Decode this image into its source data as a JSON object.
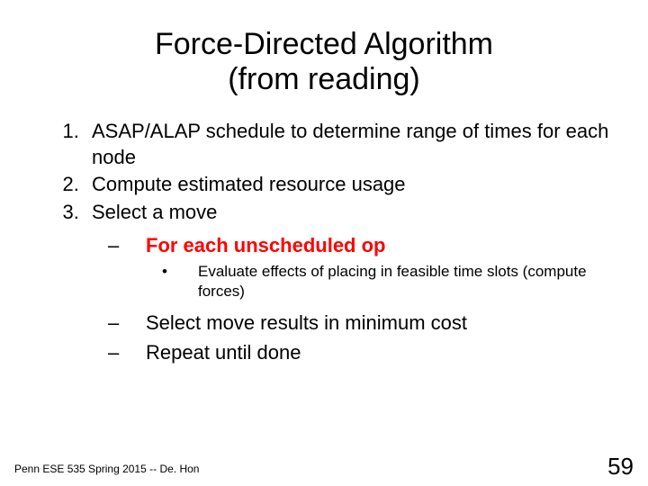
{
  "title_line1": "Force-Directed Algorithm",
  "title_line2": "(from reading)",
  "steps": {
    "s1": "ASAP/ALAP schedule to determine range of times for each node",
    "s2": "Compute estimated resource usage",
    "s3": "Select a move"
  },
  "sub_highlight": "For each unscheduled op",
  "sub_bullet": "Evaluate effects of placing in feasible time slots (compute forces)",
  "sub_dash2": "Select move results in minimum cost",
  "sub_dash3": "Repeat until done",
  "footer": "Penn ESE 535 Spring 2015 -- De. Hon",
  "page_number": "59",
  "colors": {
    "background": "#ffffff",
    "text": "#000000",
    "highlight": "#ff0000"
  },
  "typography": {
    "title_fontsize": 34,
    "body_fontsize": 22,
    "sub2_fontsize": 17,
    "footer_fontsize": 12,
    "pagenum_fontsize": 26,
    "font_family": "Arial"
  }
}
